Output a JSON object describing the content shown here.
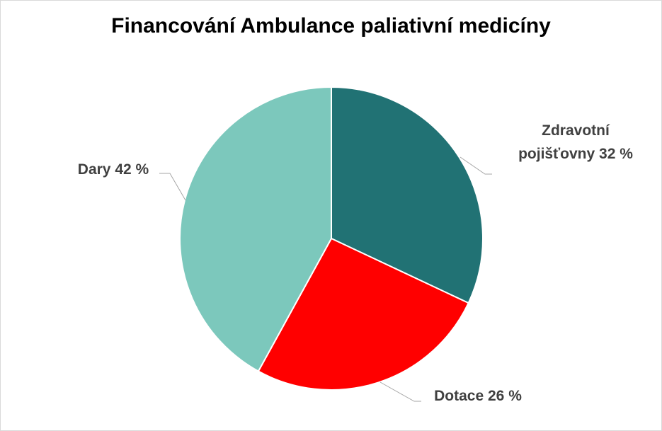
{
  "chart_data": {
    "type": "pie",
    "title": "Financování Ambulance paliativní medicíny",
    "categories": [
      "Zdravotní pojišťovny",
      "Dotace",
      "Dary"
    ],
    "values": [
      32,
      26,
      42
    ],
    "value_labels": [
      "32 %",
      "26 %",
      "42 %"
    ],
    "colors": [
      "#217274",
      "#ff0000",
      "#7cc8bc"
    ]
  }
}
